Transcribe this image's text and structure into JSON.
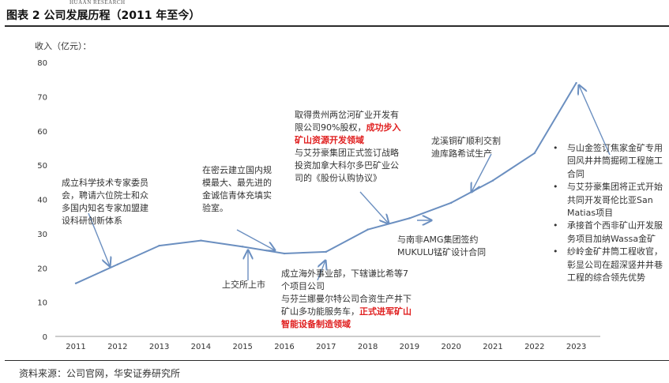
{
  "header": {
    "brand": "HUAAN RESEARCH",
    "title": "图表 2 公司发展历程（2011 年至今）"
  },
  "footer": {
    "source": "资料来源：公司官网，华安证券研究所"
  },
  "chart_data": {
    "type": "line",
    "title": "图表 2 公司发展历程（2011 年至今）",
    "ylabel": "收入（亿元）：",
    "xlabel": "",
    "ylim": [
      0,
      80
    ],
    "yticks": [
      0,
      10,
      20,
      30,
      40,
      50,
      60,
      70,
      80
    ],
    "grid": false,
    "line_color": "#6b8fc0",
    "highlight_color": "#e02020",
    "categories": [
      "2011",
      "2012",
      "2013",
      "2014",
      "2015",
      "2016",
      "2017",
      "2018",
      "2019",
      "2020",
      "2021",
      "2022",
      "2023"
    ],
    "series": [
      {
        "values": [
          15.5,
          21.0,
          26.5,
          28.0,
          26.2,
          24.2,
          24.7,
          31.2,
          34.5,
          39.0,
          45.5,
          53.5,
          74.0
        ]
      }
    ],
    "annotations": [
      {
        "id": "a1",
        "lines": [
          [
            {
              "t": "成立科学技术专家委员"
            }
          ],
          [
            {
              "t": "会，聘请六位院士和众"
            }
          ],
          [
            {
              "t": "多国内知名专家加盟建"
            }
          ],
          [
            {
              "t": "设科研创新体系"
            }
          ]
        ]
      },
      {
        "id": "a2",
        "lines": [
          [
            {
              "t": "在密云建立国内规"
            }
          ],
          [
            {
              "t": "模最大、最先进的"
            }
          ],
          [
            {
              "t": "金诚信青体充填实"
            }
          ],
          [
            {
              "t": "验室。"
            }
          ]
        ]
      },
      {
        "id": "a3",
        "lines": [
          [
            {
              "t": "上交所上市"
            }
          ]
        ]
      },
      {
        "id": "a4",
        "lines": [
          [
            {
              "t": "取得贵州两岔河矿业开发有"
            }
          ],
          [
            {
              "t": "限公司90%股权，"
            },
            {
              "t": "成功步入",
              "hl": true
            }
          ],
          [
            {
              "t": "矿山资源开发领域",
              "hl": true
            }
          ],
          [
            {
              "t": "与艾芬豪集团正式签订战略"
            }
          ],
          [
            {
              "t": "投资加拿大科尔多巴矿业公"
            }
          ],
          [
            {
              "t": "司的《股份认购协议》"
            }
          ]
        ]
      },
      {
        "id": "a5",
        "lines": [
          [
            {
              "t": "成立海外事业部，下辖谦比希等7"
            }
          ],
          [
            {
              "t": "个项目公司"
            }
          ],
          [
            {
              "t": "与芬兰娜曼尔特公司合资生产井下"
            }
          ],
          [
            {
              "t": "矿山多功能服务车，"
            },
            {
              "t": "正式进军矿山",
              "hl": true
            }
          ],
          [
            {
              "t": "智能设备制造领域",
              "hl": true
            }
          ]
        ]
      },
      {
        "id": "a6",
        "lines": [
          [
            {
              "t": "与南非AMG集团签约"
            }
          ],
          [
            {
              "t": "MUKULU锰矿设计合同"
            }
          ]
        ]
      },
      {
        "id": "a7",
        "lines": [
          [
            {
              "t": "龙溪铜矿顺利交割"
            }
          ],
          [
            {
              "t": "迪库路希试生产"
            }
          ]
        ]
      }
    ],
    "bullets": [
      [
        "与山金签订焦家金矿专用",
        "回风井井筒掘砌工程施工",
        "合同"
      ],
      [
        "与艾芬豪集团将正式开始",
        "共同开发哥伦比亚San",
        "Matias项目"
      ],
      [
        "承接首个西非矿山开发服",
        "务项目加纳Wassa金矿"
      ],
      [
        "纱岭金矿井筒工程收官，",
        "彰显公司在超深竖井井巷",
        "工程的综合领先优势"
      ]
    ]
  }
}
